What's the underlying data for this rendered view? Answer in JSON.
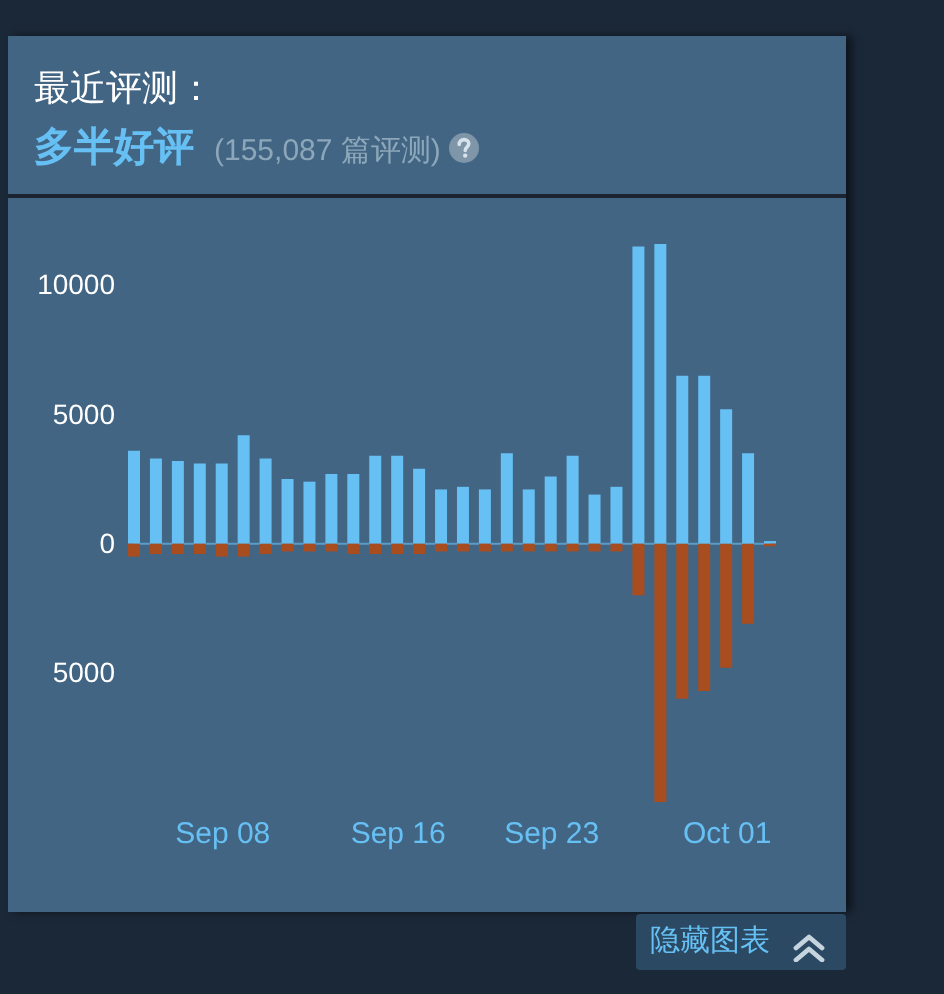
{
  "chart_data": {
    "type": "bar",
    "title": "最近评测：",
    "subtitle": "多半好评",
    "annotations": [
      "(155,087 篇评测)",
      "隐藏图表"
    ],
    "x": [
      "--09-04",
      "--09-05",
      "--09-06",
      "--09-07",
      "--09-08",
      "--09-09",
      "--09-10",
      "--09-11",
      "--09-12",
      "--09-13",
      "--09-14",
      "--09-15",
      "--09-16",
      "--09-17",
      "--09-18",
      "--09-19",
      "--09-20",
      "--09-21",
      "--09-22",
      "--09-23",
      "--09-24",
      "--09-25",
      "--09-26",
      "--09-27",
      "--09-28",
      "--09-29",
      "--09-30",
      "--10-01",
      "--10-02",
      "--10-03"
    ],
    "series": [
      {
        "color": "#66c0f4",
        "values": [
          3600,
          3300,
          3200,
          3100,
          3100,
          4200,
          3300,
          2500,
          2400,
          2700,
          2700,
          3400,
          3400,
          2900,
          2100,
          2200,
          2100,
          3500,
          2100,
          2600,
          3400,
          1900,
          2200,
          11500,
          11600,
          6500,
          6500,
          5200,
          3500,
          100
        ]
      },
      {
        "color": "#a84d1f",
        "values": [
          -500,
          -400,
          -400,
          -400,
          -500,
          -500,
          -400,
          -300,
          -300,
          -300,
          -400,
          -400,
          -400,
          -400,
          -300,
          -300,
          -300,
          -300,
          -300,
          -300,
          -300,
          -300,
          -300,
          -2000,
          -10000,
          -6000,
          -5700,
          -4800,
          -3100,
          -100
        ]
      }
    ],
    "stacked": true,
    "xlim": [
      "--09-04",
      "--10-03"
    ],
    "xticks": [
      {
        "value": "--09-08",
        "label": "Sep 08"
      },
      {
        "value": "--09-16",
        "label": "Sep 16"
      },
      {
        "value": "--09-23",
        "label": "Sep 23"
      },
      {
        "value": "--10-01",
        "label": "Oct 01"
      }
    ],
    "ylim": [
      -10000,
      11600
    ],
    "yticks": [
      {
        "value": -5000,
        "label": "5000"
      },
      0,
      5000,
      10000
    ],
    "ref_lines": [
      {
        "axis": "y",
        "value": 0,
        "color": "#5a9cc8"
      }
    ],
    "grid": false,
    "legend": false
  }
}
